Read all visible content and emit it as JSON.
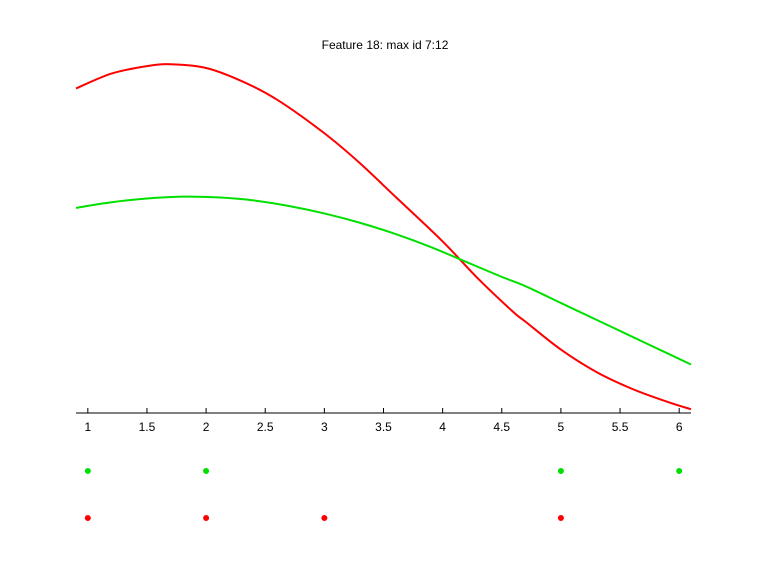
{
  "chart_data": {
    "type": "line",
    "title": "Feature 18: max id 7:12",
    "xlabel": "",
    "ylabel": "",
    "xlim": [
      0.9,
      6.1
    ],
    "ylim": [
      0,
      1
    ],
    "xticks": [
      "1",
      "1.5",
      "2",
      "2.5",
      "3",
      "3.5",
      "4",
      "4.5",
      "5",
      "5.5",
      "6"
    ],
    "grid": false,
    "series": [
      {
        "color": "#ff0000",
        "x": [
          0.9,
          1.2,
          1.5,
          1.7,
          2.0,
          2.3,
          2.6,
          3.0,
          3.3,
          3.6,
          4.0,
          4.3,
          4.6,
          4.7,
          5.0,
          5.3,
          5.6,
          5.9,
          6.1
        ],
        "y": [
          0.87,
          0.91,
          0.93,
          0.935,
          0.925,
          0.89,
          0.84,
          0.75,
          0.67,
          0.58,
          0.46,
          0.36,
          0.27,
          0.245,
          0.17,
          0.11,
          0.065,
          0.03,
          0.01
        ]
      },
      {
        "color": "#00e000",
        "x": [
          0.9,
          1.2,
          1.5,
          1.8,
          2.1,
          2.4,
          2.7,
          3.0,
          3.3,
          3.6,
          3.9,
          4.2,
          4.5,
          4.7,
          5.0,
          5.3,
          5.6,
          5.9,
          6.1
        ],
        "y": [
          0.55,
          0.565,
          0.575,
          0.58,
          0.578,
          0.57,
          0.555,
          0.535,
          0.51,
          0.48,
          0.445,
          0.405,
          0.365,
          0.34,
          0.295,
          0.25,
          0.205,
          0.16,
          0.13
        ]
      }
    ],
    "markers": [
      {
        "color": "#00e000",
        "x": [
          1,
          2,
          5,
          6
        ]
      },
      {
        "color": "#ff0000",
        "x": [
          1,
          2,
          3,
          5
        ]
      }
    ]
  }
}
